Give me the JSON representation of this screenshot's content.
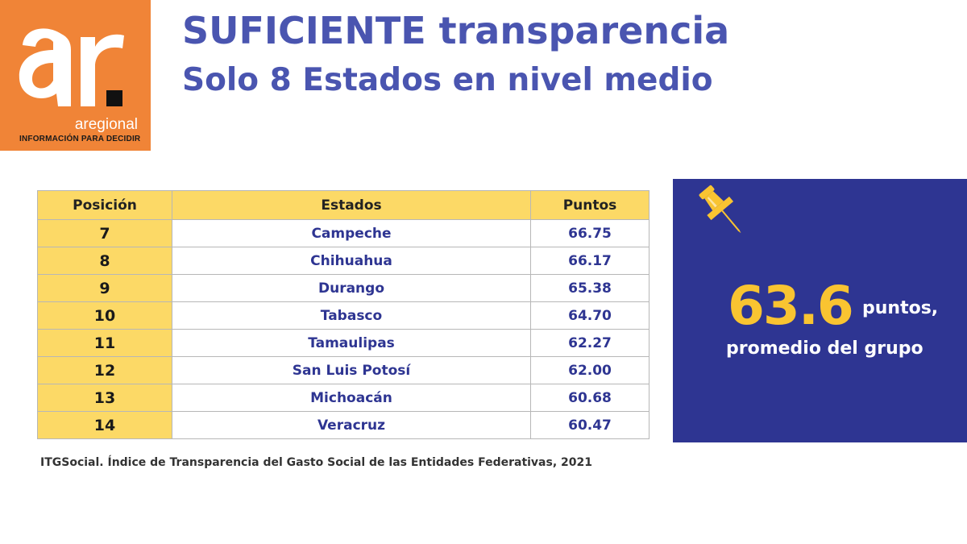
{
  "logo": {
    "mark": "ar.",
    "name": "aregional",
    "tagline": "INFORMACIÓN PARA DECIDIR",
    "colors": {
      "background": "#f08437",
      "letters": "#ffffff",
      "dot": "#111111"
    }
  },
  "header": {
    "title": "SUFICIENTE transparencia",
    "subtitle": "Solo 8 Estados en nivel medio",
    "color": "#4a55b0"
  },
  "table": {
    "headers": {
      "position": "Posición",
      "state": "Estados",
      "points": "Puntos"
    },
    "rows": [
      {
        "position": "7",
        "state": "Campeche",
        "points": "66.75"
      },
      {
        "position": "8",
        "state": "Chihuahua",
        "points": "66.17"
      },
      {
        "position": "9",
        "state": "Durango",
        "points": "65.38"
      },
      {
        "position": "10",
        "state": "Tabasco",
        "points": "64.70"
      },
      {
        "position": "11",
        "state": "Tamaulipas",
        "points": "62.27"
      },
      {
        "position": "12",
        "state": "San Luis Potosí",
        "points": "62.00"
      },
      {
        "position": "13",
        "state": "Michoacán",
        "points": "60.68"
      },
      {
        "position": "14",
        "state": "Veracruz",
        "points": "60.47"
      }
    ],
    "colors": {
      "header": "#fcd966",
      "text": "#2e3592"
    }
  },
  "source": "ITGSocial. Índice de Transparencia del Gasto Social de las Entidades Federativas, 2021",
  "summary": {
    "value": "63.6",
    "unit": "puntos,",
    "caption": "promedio del grupo",
    "icon": "pushpin-icon",
    "colors": {
      "panel": "#2e3592",
      "value": "#f9c431"
    }
  }
}
